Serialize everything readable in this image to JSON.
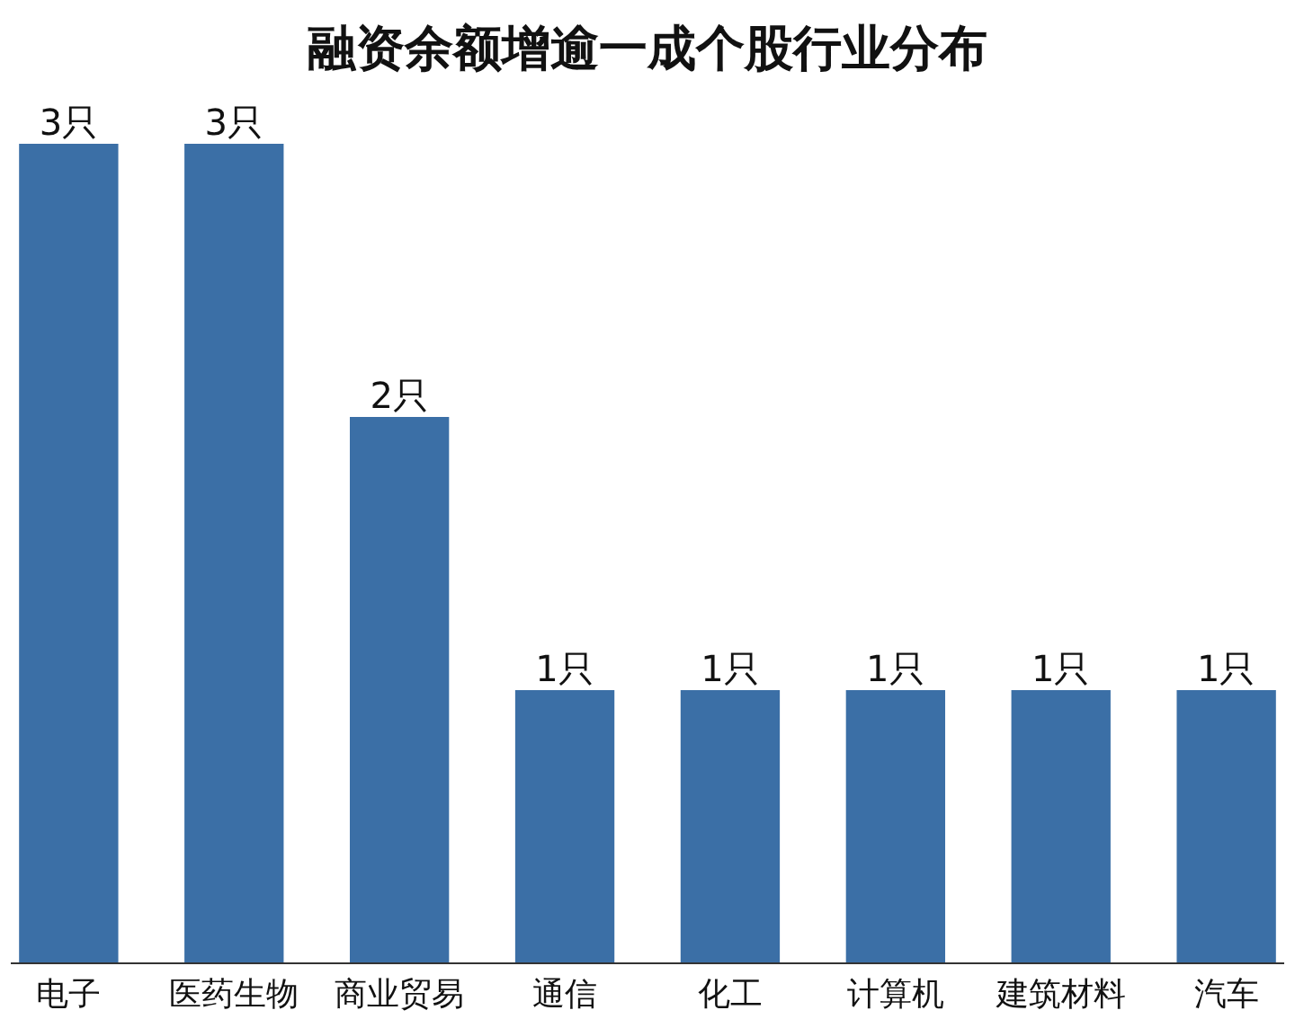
{
  "chart_data": {
    "type": "bar",
    "title": "融资余额增逾一成个股行业分布",
    "categories": [
      "电子",
      "医药生物",
      "商业贸易",
      "通信",
      "化工",
      "计算机",
      "建筑材料",
      "汽车"
    ],
    "values": [
      3,
      3,
      2,
      1,
      1,
      1,
      1,
      1
    ],
    "value_labels": [
      "3只",
      "3只",
      "2只",
      "1只",
      "1只",
      "1只",
      "1只",
      "1只"
    ],
    "color": "#3b6fa6"
  }
}
